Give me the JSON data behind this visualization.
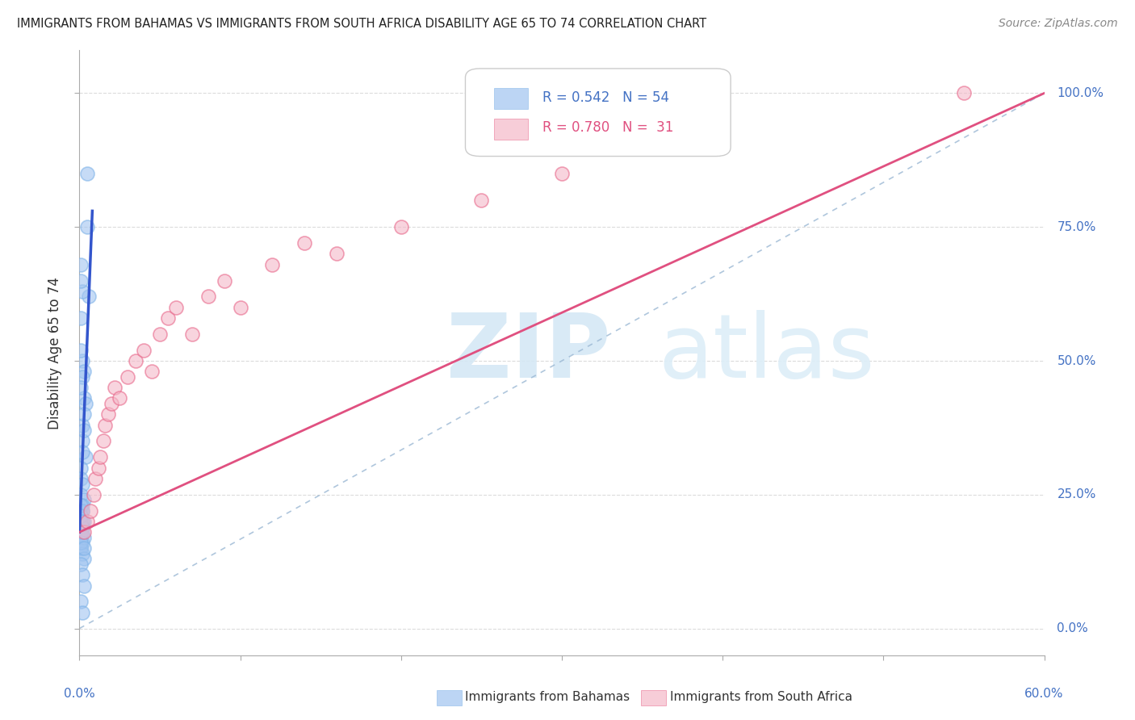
{
  "title": "IMMIGRANTS FROM BAHAMAS VS IMMIGRANTS FROM SOUTH AFRICA DISABILITY AGE 65 TO 74 CORRELATION CHART",
  "source": "Source: ZipAtlas.com",
  "ylabel": "Disability Age 65 to 74",
  "bahamas_color": "#a0c4f0",
  "bahamas_edge_color": "#7fb3e8",
  "south_africa_color": "#f4b8c8",
  "south_africa_edge_color": "#e8678a",
  "bahamas_line_color": "#3355cc",
  "south_africa_line_color": "#e05080",
  "grid_color": "#cccccc",
  "bg_color": "#ffffff",
  "xlim": [
    0.0,
    0.6
  ],
  "ylim": [
    -0.05,
    1.08
  ],
  "x_ticks": [
    0.0,
    0.1,
    0.2,
    0.3,
    0.4,
    0.5,
    0.6
  ],
  "y_ticks": [
    0.0,
    0.25,
    0.5,
    0.75,
    1.0
  ],
  "y_tick_labels": [
    "0.0%",
    "25.0%",
    "50.0%",
    "75.0%",
    "100.0%"
  ],
  "bahamas_R": 0.542,
  "bahamas_N": 54,
  "south_africa_R": 0.78,
  "south_africa_N": 31,
  "bah_x": [
    0.005,
    0.006,
    0.001,
    0.002,
    0.001,
    0.002,
    0.003,
    0.001,
    0.002,
    0.001,
    0.003,
    0.004,
    0.001,
    0.002,
    0.002,
    0.003,
    0.003,
    0.004,
    0.002,
    0.001,
    0.001,
    0.002,
    0.001,
    0.003,
    0.002,
    0.001,
    0.002,
    0.003,
    0.001,
    0.002,
    0.001,
    0.001,
    0.002,
    0.001,
    0.001,
    0.002,
    0.003,
    0.001,
    0.002,
    0.001,
    0.001,
    0.002,
    0.003,
    0.001,
    0.002,
    0.001,
    0.002,
    0.003,
    0.001,
    0.002,
    0.001,
    0.003,
    0.002,
    0.005
  ],
  "bah_y": [
    0.75,
    0.62,
    0.68,
    0.63,
    0.65,
    0.5,
    0.48,
    0.52,
    0.47,
    0.58,
    0.43,
    0.42,
    0.45,
    0.38,
    0.35,
    0.4,
    0.37,
    0.32,
    0.33,
    0.3,
    0.28,
    0.27,
    0.25,
    0.24,
    0.22,
    0.21,
    0.23,
    0.2,
    0.22,
    0.19,
    0.18,
    0.17,
    0.16,
    0.15,
    0.15,
    0.14,
    0.13,
    0.18,
    0.22,
    0.2,
    0.23,
    0.19,
    0.17,
    0.21,
    0.2,
    0.16,
    0.18,
    0.15,
    0.12,
    0.1,
    0.05,
    0.08,
    0.03,
    0.85
  ],
  "sa_x": [
    0.003,
    0.005,
    0.007,
    0.009,
    0.01,
    0.012,
    0.013,
    0.015,
    0.016,
    0.018,
    0.02,
    0.022,
    0.025,
    0.03,
    0.035,
    0.04,
    0.045,
    0.05,
    0.055,
    0.06,
    0.07,
    0.08,
    0.09,
    0.1,
    0.12,
    0.14,
    0.16,
    0.2,
    0.25,
    0.3,
    0.55
  ],
  "sa_y": [
    0.18,
    0.2,
    0.22,
    0.25,
    0.28,
    0.3,
    0.32,
    0.35,
    0.38,
    0.4,
    0.42,
    0.45,
    0.43,
    0.47,
    0.5,
    0.52,
    0.48,
    0.55,
    0.58,
    0.6,
    0.55,
    0.62,
    0.65,
    0.6,
    0.68,
    0.72,
    0.7,
    0.75,
    0.8,
    0.85,
    1.0
  ],
  "bah_line_x": [
    0.0,
    0.008
  ],
  "bah_line_y": [
    0.18,
    0.78
  ],
  "sa_line_x": [
    0.0,
    0.6
  ],
  "sa_line_y": [
    0.18,
    1.0
  ],
  "ref_line_x": [
    0.0,
    0.6
  ],
  "ref_line_y": [
    0.0,
    1.0
  ]
}
